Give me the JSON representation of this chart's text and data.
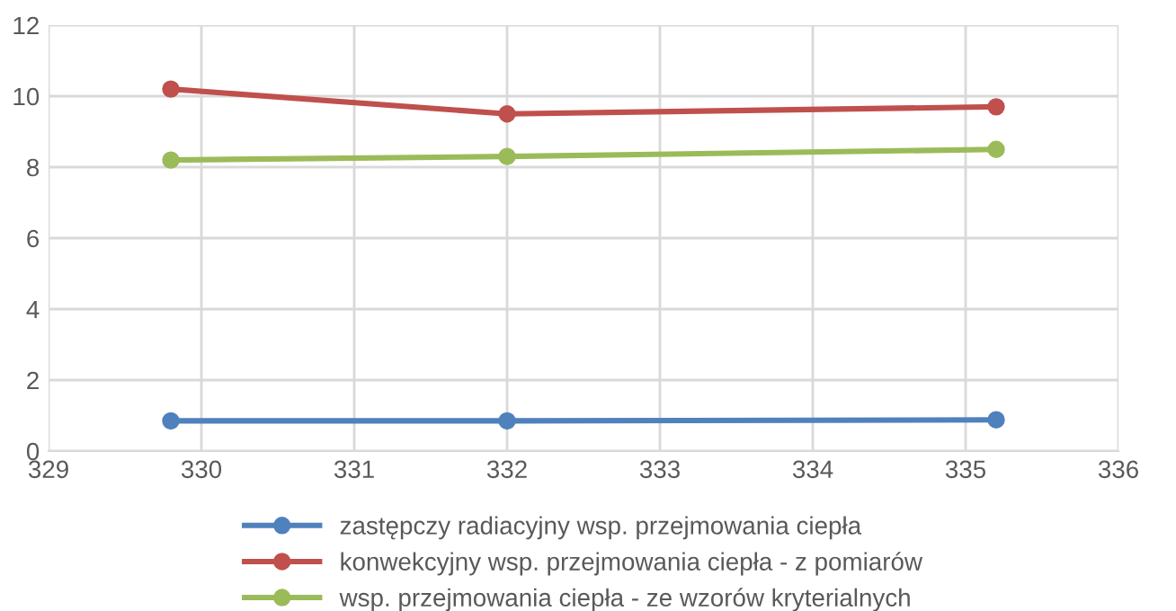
{
  "chart_data": {
    "type": "line",
    "marker": "circle",
    "line_style": "solid",
    "grid": true,
    "legend": "bottom",
    "xlim": [
      329,
      336
    ],
    "xticks": [
      329,
      330,
      331,
      332,
      333,
      334,
      335,
      336
    ],
    "ylim": [
      0,
      12
    ],
    "yticks": [
      0,
      2,
      4,
      6,
      8,
      10,
      12
    ],
    "x": [
      329.8,
      332,
      335.2
    ],
    "series": [
      {
        "name": "zastępczy radiacyjny wsp. przejmowania ciepła",
        "color": "#4f81bd",
        "values": [
          0.85,
          0.85,
          0.88
        ]
      },
      {
        "name": "konwekcyjny wsp. przejmowania ciepła - z pomiarów",
        "color": "#c0504d",
        "values": [
          10.2,
          9.5,
          9.7
        ]
      },
      {
        "name": "wsp. przejmowania ciepła - ze wzorów kryterialnych",
        "color": "#9bbb59",
        "values": [
          8.2,
          8.3,
          8.5
        ]
      }
    ]
  }
}
